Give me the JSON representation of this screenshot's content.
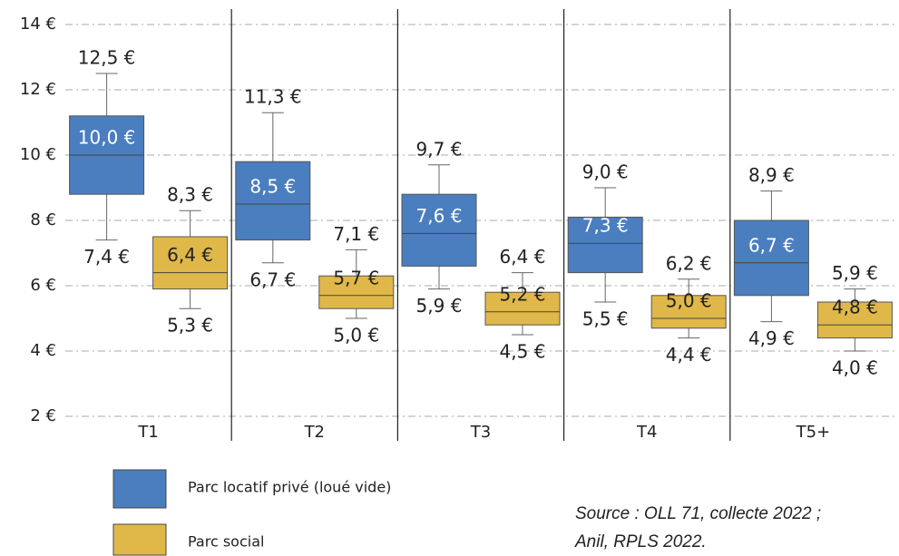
{
  "chart_data": {
    "type": "box",
    "categories": [
      "T1",
      "T2",
      "T3",
      "T4",
      "T5+"
    ],
    "ylim": [
      2,
      14
    ],
    "yticks": [
      {
        "value": 2,
        "label": "2 €"
      },
      {
        "value": 4,
        "label": "4 €"
      },
      {
        "value": 6,
        "label": "6 €"
      },
      {
        "value": 8,
        "label": "8 €"
      },
      {
        "value": 10,
        "label": "10 €"
      },
      {
        "value": 12,
        "label": "12 €"
      },
      {
        "value": 14,
        "label": "14 €"
      }
    ],
    "grid": true,
    "series": [
      {
        "name": "Parc locatif privé (loué vide)",
        "color": "#4a7ebf",
        "label_color": "#ffffff",
        "min": [
          7.4,
          6.7,
          5.9,
          5.5,
          4.9
        ],
        "q1": [
          8.8,
          7.4,
          6.6,
          6.4,
          5.7
        ],
        "median": [
          10.0,
          8.5,
          7.6,
          7.3,
          6.7
        ],
        "q3": [
          11.2,
          9.8,
          8.8,
          8.1,
          8.0
        ],
        "max": [
          12.5,
          11.3,
          9.7,
          9.0,
          8.9
        ],
        "min_labels": [
          "7,4 €",
          "6,7 €",
          "5,9 €",
          "5,5 €",
          "4,9 €"
        ],
        "median_labels": [
          "10,0 €",
          "8,5 €",
          "7,6 €",
          "7,3 €",
          "6,7 €"
        ],
        "max_labels": [
          "12,5 €",
          "11,3 €",
          "9,7 €",
          "9,0 €",
          "8,9 €"
        ]
      },
      {
        "name": "Parc social",
        "color": "#e0b84a",
        "label_color": "#222222",
        "min": [
          5.3,
          5.0,
          4.5,
          4.4,
          4.0
        ],
        "q1": [
          5.9,
          5.3,
          4.8,
          4.7,
          4.4
        ],
        "median": [
          6.4,
          5.7,
          5.2,
          5.0,
          4.8
        ],
        "q3": [
          7.5,
          6.3,
          5.8,
          5.7,
          5.5
        ],
        "max": [
          8.3,
          7.1,
          6.4,
          6.2,
          5.9
        ],
        "min_labels": [
          "5,3 €",
          "5,0 €",
          "4,5 €",
          "4,4 €",
          "4,0 €"
        ],
        "median_labels": [
          "6,4 €",
          "5,7 €",
          "5,2 €",
          "5,0 €",
          "4,8 €"
        ],
        "max_labels": [
          "8,3 €",
          "7,1 €",
          "6,4 €",
          "6,2 €",
          "5,9 €"
        ]
      }
    ],
    "source": [
      "Source : OLL 71, collecte 2022 ;",
      "Anil, RPLS 2022."
    ]
  }
}
